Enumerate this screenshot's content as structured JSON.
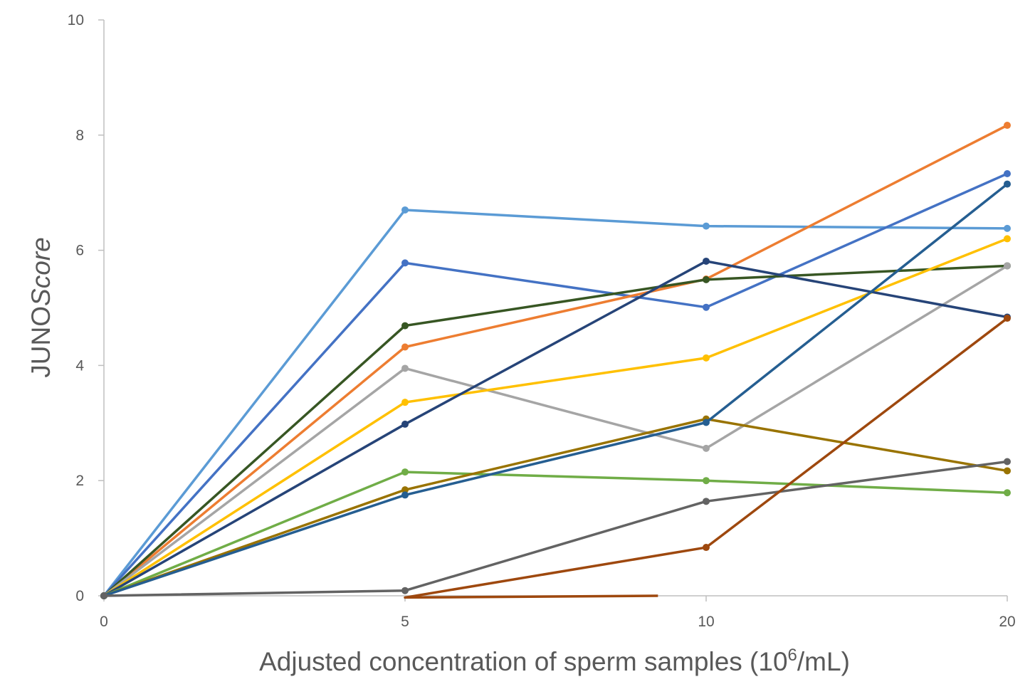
{
  "chart_data": {
    "type": "line",
    "xlabel": "Adjusted concentration of sperm samples (10",
    "xlabel_sup": "6",
    "xlabel_suffix": "/mL)",
    "ylabel_main": "JUNO",
    "ylabel_italic": "Score",
    "x": [
      0,
      5,
      10,
      20
    ],
    "x_tick_labels": [
      "0",
      "5",
      "10",
      "20"
    ],
    "y_ticks": [
      0,
      2,
      4,
      6,
      8,
      10
    ],
    "y_tick_labels": [
      "0",
      "2",
      "4",
      "6",
      "8",
      "10"
    ],
    "ylim": [
      0,
      10
    ],
    "grid": false,
    "legend": "none",
    "series": [
      {
        "color": "#5B9BD5",
        "values": [
          0,
          6.7,
          6.42,
          6.38
        ]
      },
      {
        "color": "#4472C4",
        "values": [
          0,
          5.78,
          5.01,
          7.33
        ]
      },
      {
        "color": "#ED7D31",
        "values": [
          0,
          4.32,
          5.5,
          8.17
        ]
      },
      {
        "color": "#375623",
        "values": [
          0,
          4.69,
          5.49,
          5.73
        ]
      },
      {
        "color": "#A5A5A5",
        "values": [
          0,
          3.95,
          2.56,
          5.73
        ]
      },
      {
        "color": "#FFC000",
        "values": [
          0,
          3.36,
          4.13,
          6.2
        ]
      },
      {
        "color": "#264478",
        "values": [
          0,
          2.98,
          5.81,
          4.84
        ]
      },
      {
        "color": "#70AD47",
        "values": [
          0,
          2.15,
          2.0,
          1.79
        ]
      },
      {
        "color": "#997300",
        "values": [
          0,
          1.84,
          3.07,
          2.17
        ]
      },
      {
        "color": "#255E91",
        "values": [
          0,
          1.75,
          3.01,
          7.15
        ]
      },
      {
        "color": "#636363",
        "values": [
          0,
          0.09,
          1.64,
          2.33
        ]
      },
      {
        "color": "#9E480E",
        "values": [
          null,
          -0.03,
          0.84,
          4.82
        ],
        "start_cut": {
          "x": 9.2,
          "y": 0
        }
      }
    ]
  }
}
